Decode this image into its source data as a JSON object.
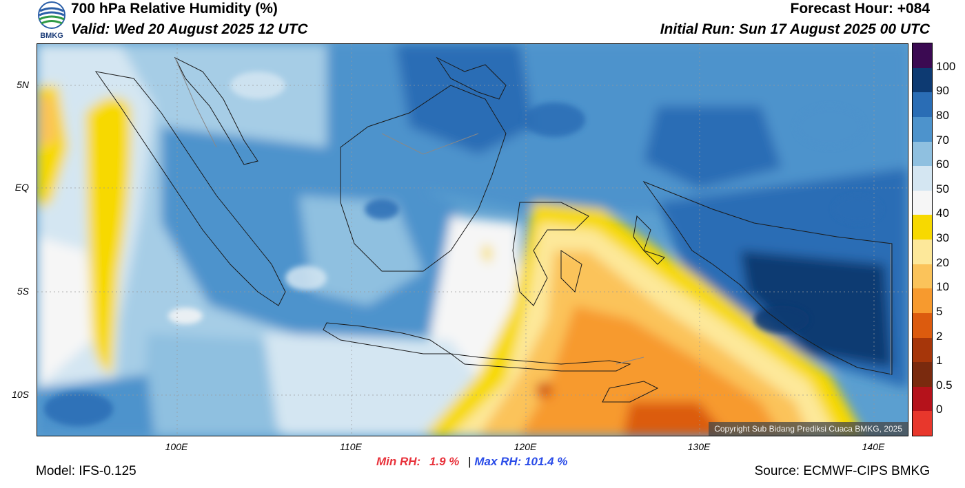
{
  "header": {
    "title": "700 hPa Relative Humidity (%)",
    "valid": "Valid: Wed 20 August 2025 12 UTC",
    "forecast_hour": "Forecast Hour: +084",
    "initial_run": "Initial Run: Sun 17 August 2025 00 UTC",
    "logo_text": "BMKG"
  },
  "map": {
    "lat_labels": [
      "5N",
      "EQ",
      "5S",
      "10S"
    ],
    "lon_labels": [
      "100E",
      "110E",
      "120E",
      "130E",
      "140E"
    ],
    "copyright": "Copyright Sub Bidang Prediksi Cuaca BMKG, 2025"
  },
  "colorbar": {
    "labels": [
      "100",
      "90",
      "80",
      "70",
      "60",
      "50",
      "40",
      "30",
      "20",
      "10",
      "5",
      "2",
      "1",
      "0.5",
      "0"
    ],
    "colors": [
      "#3b0a52",
      "#0d3a72",
      "#2a6db5",
      "#4d93cc",
      "#8fc0e0",
      "#d4e6f2",
      "#f6f6f6",
      "#f7d900",
      "#fde89a",
      "#fbc35a",
      "#f79a2e",
      "#dc5b0e",
      "#a6360a",
      "#7a2a0e",
      "#b5121b",
      "#e8372c"
    ]
  },
  "footer": {
    "min_label": "Min RH:",
    "min_value": "1.9 %",
    "separator": "|",
    "max_label": "Max RH:",
    "max_value": "101.4 %",
    "model": "Model: IFS-0.125",
    "source": "Source: ECMWF-CIPS BMKG"
  }
}
